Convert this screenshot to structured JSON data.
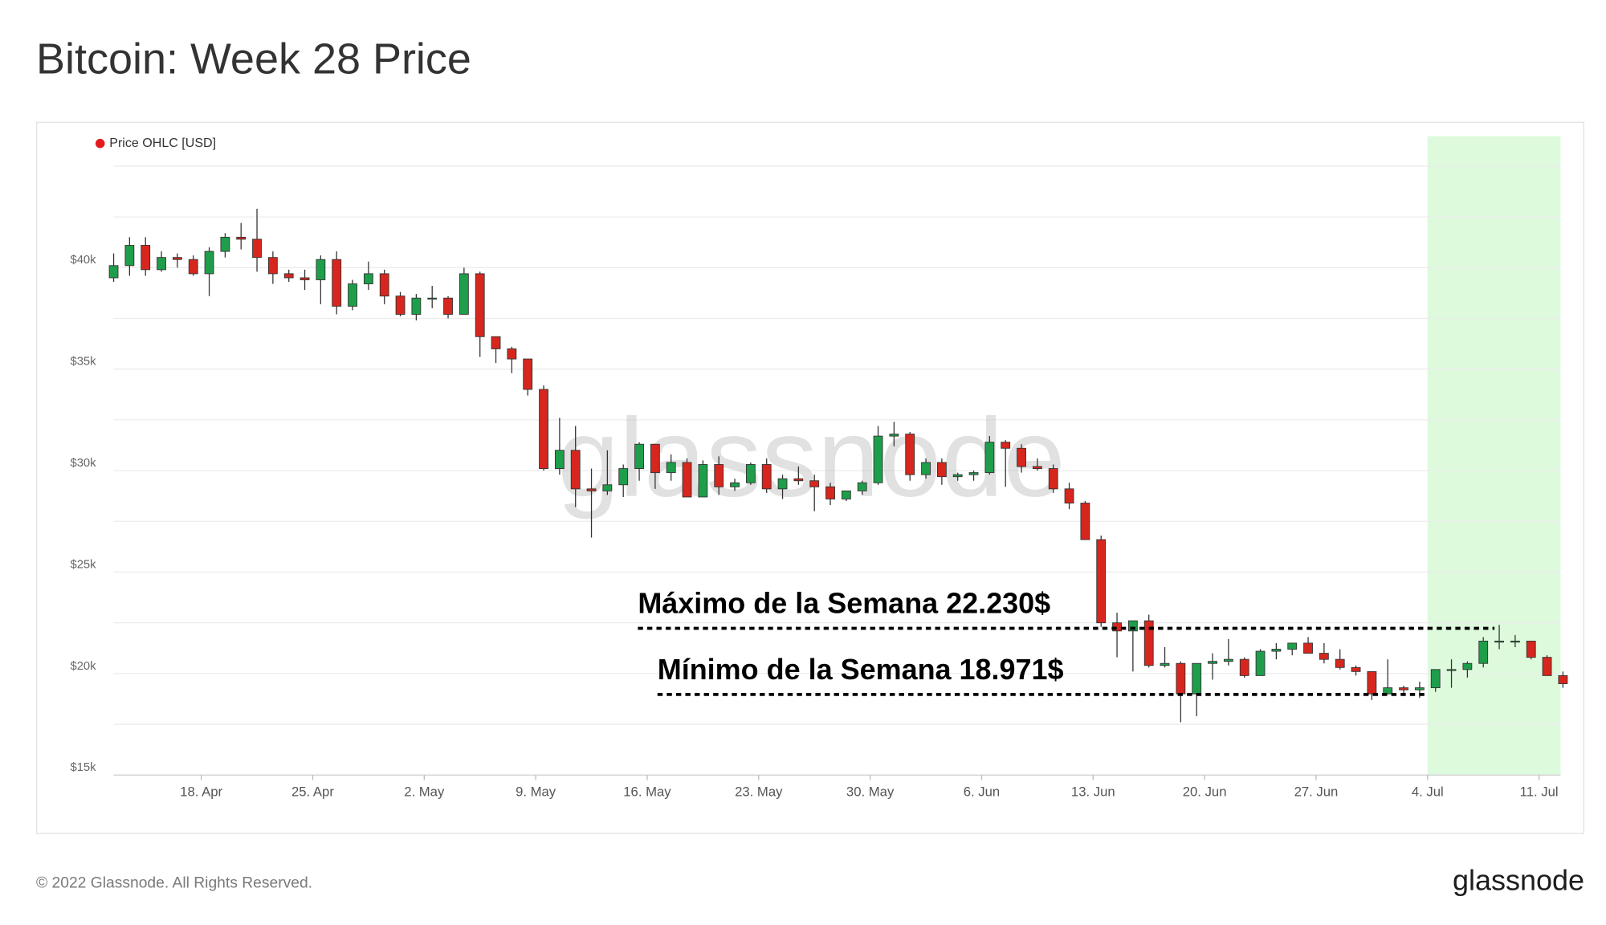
{
  "chart_data": {
    "type": "candlestick",
    "title": "Bitcoin: Week 28 Price",
    "watermark": "glassnode",
    "footer": "© 2022 Glassnode. All Rights Reserved.",
    "logo": "glassnode",
    "up_color": "#1e9e4a",
    "down_color": "#d7261e",
    "grid": true,
    "legend": "top-left",
    "highlight": {
      "from": "07-04",
      "to": "07-12",
      "color": "#ddfadd"
    },
    "xlim": [
      "04-12",
      "07-13"
    ],
    "xticks": [
      {
        "value": "04-18",
        "label": "18. Apr"
      },
      {
        "value": "04-25",
        "label": "25. Apr"
      },
      {
        "value": "05-02",
        "label": "2. May"
      },
      {
        "value": "05-09",
        "label": "9. May"
      },
      {
        "value": "05-16",
        "label": "16. May"
      },
      {
        "value": "05-23",
        "label": "23. May"
      },
      {
        "value": "05-30",
        "label": "30. May"
      },
      {
        "value": "06-06",
        "label": "6. Jun"
      },
      {
        "value": "06-13",
        "label": "13. Jun"
      },
      {
        "value": "06-20",
        "label": "20. Jun"
      },
      {
        "value": "06-27",
        "label": "27. Jun"
      },
      {
        "value": "07-04",
        "label": "4. Jul"
      },
      {
        "value": "07-11",
        "label": "11. Jul"
      }
    ],
    "ylim": [
      15000,
      45000
    ],
    "yticks": [
      {
        "value": 15000,
        "label": "$15k"
      },
      {
        "value": 17500,
        "label": null
      },
      {
        "value": 20000,
        "label": "$20k"
      },
      {
        "value": 22500,
        "label": null
      },
      {
        "value": 25000,
        "label": "$25k"
      },
      {
        "value": 27500,
        "label": null
      },
      {
        "value": 30000,
        "label": "$30k"
      },
      {
        "value": 32500,
        "label": null
      },
      {
        "value": 35000,
        "label": "$35k"
      },
      {
        "value": 37500,
        "label": null
      },
      {
        "value": 40000,
        "label": "$40k"
      },
      {
        "value": 42500,
        "label": null
      },
      {
        "value": 45000,
        "label": null
      }
    ],
    "annotations": [
      {
        "text": "Máximo de la Semana 22.230$",
        "value": 22230
      },
      {
        "text": "Mínimo de la Semana 18.971$",
        "value": 18971
      }
    ],
    "x": [
      "04-12",
      "04-13",
      "04-14",
      "04-15",
      "04-16",
      "04-17",
      "04-18",
      "04-19",
      "04-20",
      "04-21",
      "04-22",
      "04-23",
      "04-24",
      "04-25",
      "04-26",
      "04-27",
      "04-28",
      "04-29",
      "04-30",
      "05-01",
      "05-02",
      "05-03",
      "05-04",
      "05-05",
      "05-06",
      "05-07",
      "05-08",
      "05-09",
      "05-10",
      "05-11",
      "05-12",
      "05-13",
      "05-14",
      "05-15",
      "05-16",
      "05-17",
      "05-18",
      "05-19",
      "05-20",
      "05-21",
      "05-22",
      "05-23",
      "05-24",
      "05-25",
      "05-26",
      "05-27",
      "05-28",
      "05-29",
      "05-30",
      "05-31",
      "06-01",
      "06-02",
      "06-03",
      "06-04",
      "06-05",
      "06-06",
      "06-07",
      "06-08",
      "06-09",
      "06-10",
      "06-11",
      "06-12",
      "06-13",
      "06-14",
      "06-15",
      "06-16",
      "06-17",
      "06-18",
      "06-19",
      "06-20",
      "06-21",
      "06-22",
      "06-23",
      "06-24",
      "06-25",
      "06-26",
      "06-27",
      "06-28",
      "06-29",
      "06-30",
      "07-01",
      "07-02",
      "07-03",
      "07-04",
      "07-05",
      "07-06",
      "07-07",
      "07-08",
      "07-09",
      "07-10",
      "07-11",
      "07-12"
    ],
    "series": [
      {
        "name": "Price OHLC [USD]",
        "color": "#e41a1c",
        "open": [
          39500,
          40100,
          41100,
          39900,
          40500,
          40400,
          39700,
          40800,
          41500,
          41400,
          40500,
          39700,
          39500,
          39400,
          40400,
          38100,
          39200,
          39700,
          38600,
          37700,
          38500,
          38500,
          37700,
          39700,
          36600,
          36000,
          35500,
          34000,
          30100,
          31000,
          29100,
          29000,
          29300,
          30100,
          31300,
          29900,
          30400,
          28700,
          30300,
          29200,
          29400,
          30300,
          29100,
          29600,
          29500,
          29200,
          28600,
          29000,
          29400,
          31700,
          31800,
          29800,
          30400,
          29700,
          29800,
          29900,
          31400,
          31100,
          30200,
          30100,
          29100,
          28400,
          26600,
          22500,
          22100,
          22600,
          20400,
          20500,
          19000,
          20500,
          20600,
          20700,
          19900,
          21100,
          21200,
          21500,
          21000,
          20700,
          20300,
          20100,
          19000,
          19300,
          19200,
          19300,
          20200,
          20200,
          20500,
          21600,
          21600,
          21600,
          20800,
          19900
        ],
        "high": [
          40700,
          41500,
          41500,
          40800,
          40700,
          40600,
          41000,
          41700,
          42200,
          42900,
          40800,
          39900,
          39900,
          40600,
          40800,
          39400,
          40300,
          39900,
          38800,
          38700,
          39100,
          38600,
          40000,
          39800,
          36600,
          36100,
          35500,
          34200,
          32600,
          32200,
          30100,
          31000,
          30300,
          31400,
          31300,
          30800,
          30600,
          30500,
          30700,
          29600,
          30400,
          30600,
          29800,
          30200,
          29800,
          29400,
          29000,
          29500,
          32200,
          32400,
          31900,
          30600,
          30600,
          29900,
          30000,
          31700,
          31500,
          31300,
          30600,
          30300,
          29400,
          28500,
          26800,
          23000,
          22600,
          22900,
          21300,
          20600,
          20500,
          21000,
          21700,
          20800,
          21200,
          21500,
          21500,
          21800,
          21500,
          21200,
          20400,
          20100,
          20700,
          19400,
          19600,
          20200,
          20700,
          20600,
          21800,
          22400,
          21900,
          21600,
          20900,
          20100
        ],
        "low": [
          39300,
          39600,
          39600,
          39800,
          40000,
          39600,
          38600,
          40500,
          40900,
          39800,
          39200,
          39300,
          38900,
          38200,
          37700,
          37900,
          38900,
          38200,
          37600,
          37400,
          38000,
          37500,
          37700,
          35600,
          35300,
          34800,
          33700,
          30000,
          29800,
          28200,
          26700,
          28800,
          28700,
          29500,
          29100,
          29500,
          28700,
          28700,
          28800,
          29000,
          29300,
          28900,
          28600,
          29300,
          28000,
          28300,
          28500,
          28800,
          29300,
          31200,
          29500,
          29600,
          29300,
          29500,
          29500,
          29800,
          29200,
          29900,
          30000,
          28900,
          28100,
          26600,
          22300,
          20800,
          20100,
          20300,
          20300,
          17600,
          17900,
          19700,
          20400,
          19800,
          19900,
          20700,
          20900,
          21000,
          20500,
          20200,
          19900,
          18700,
          19000,
          19000,
          18800,
          19100,
          19300,
          19800,
          20300,
          21200,
          21300,
          20700,
          19900,
          19300
        ],
        "close": [
          40100,
          41100,
          39900,
          40500,
          40400,
          39700,
          40800,
          41500,
          41400,
          40500,
          39700,
          39500,
          39400,
          40400,
          38100,
          39200,
          39700,
          38600,
          37700,
          38500,
          38500,
          37700,
          39700,
          36600,
          36000,
          35500,
          34000,
          30100,
          31000,
          29100,
          29000,
          29300,
          30100,
          31300,
          29900,
          30400,
          28700,
          30300,
          29200,
          29400,
          30300,
          29100,
          29600,
          29500,
          29200,
          28600,
          29000,
          29400,
          31700,
          31800,
          29800,
          30400,
          29700,
          29800,
          29900,
          31400,
          31100,
          30200,
          30100,
          29100,
          28400,
          26600,
          22500,
          22100,
          22600,
          20400,
          20500,
          19000,
          20500,
          20600,
          20700,
          19900,
          21100,
          21200,
          21500,
          21000,
          20700,
          20300,
          20100,
          19000,
          19300,
          19200,
          19300,
          20200,
          20200,
          20500,
          21600,
          21600,
          21600,
          20800,
          19900,
          19500
        ]
      }
    ]
  }
}
